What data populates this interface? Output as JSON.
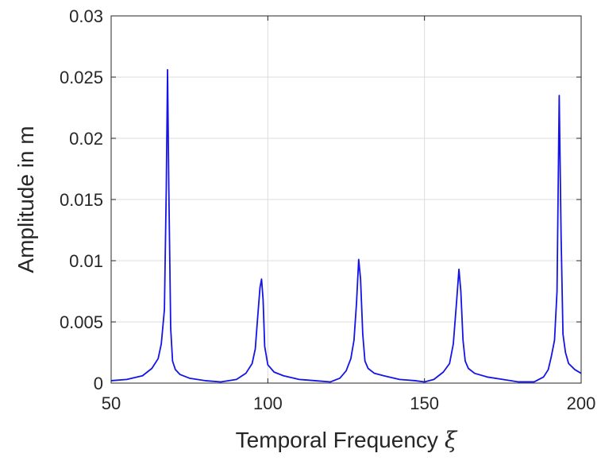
{
  "chart_data": {
    "type": "line",
    "title": "",
    "xlabel": "Temporal Frequency",
    "xlabel_symbol": "ξ",
    "ylabel": "Amplitude in m",
    "xlim": [
      50,
      200
    ],
    "ylim": [
      0,
      0.03
    ],
    "xticks": [
      50,
      100,
      150,
      200
    ],
    "xtick_labels": [
      "50",
      "100",
      "150",
      "200"
    ],
    "yticks": [
      0,
      0.005,
      0.01,
      0.015,
      0.02,
      0.025,
      0.03
    ],
    "ytick_labels": [
      "0",
      "0.005",
      "0.01",
      "0.015",
      "0.02",
      "0.025",
      "0.03"
    ],
    "grid": true,
    "line_color": "#1414e6",
    "series": [
      {
        "x": [
          50,
          55,
          60,
          63,
          65,
          66,
          67,
          67.6,
          68,
          68.4,
          69,
          69.6,
          70.5,
          72,
          75,
          80,
          85,
          90,
          93,
          95,
          96,
          96.8,
          97.5,
          98,
          98.5,
          99,
          100,
          102,
          105,
          110,
          115,
          120,
          123,
          125,
          126.5,
          127.5,
          128.3,
          129,
          129.6,
          130.3,
          131,
          132,
          134,
          137,
          142,
          147,
          150,
          153,
          156,
          158,
          159.2,
          160.2,
          161,
          161.6,
          162.3,
          163,
          164,
          166,
          170,
          175,
          180,
          185,
          188,
          189.5,
          190.5,
          191.5,
          192.3,
          193,
          193.6,
          194.2,
          195,
          196,
          198,
          200
        ],
        "y": [
          0.0002,
          0.0003,
          0.0006,
          0.0012,
          0.002,
          0.0032,
          0.006,
          0.016,
          0.0256,
          0.016,
          0.0045,
          0.0018,
          0.0011,
          0.0007,
          0.0004,
          0.0002,
          0.0001,
          0.0003,
          0.0008,
          0.0016,
          0.0028,
          0.0055,
          0.0078,
          0.0085,
          0.0068,
          0.003,
          0.0015,
          0.0009,
          0.0006,
          0.0003,
          0.0002,
          0.0001,
          0.0004,
          0.001,
          0.002,
          0.0035,
          0.0065,
          0.0101,
          0.0085,
          0.004,
          0.0018,
          0.0012,
          0.0008,
          0.0006,
          0.0003,
          0.0002,
          0.0001,
          0.0003,
          0.0009,
          0.0016,
          0.0032,
          0.0065,
          0.0093,
          0.0075,
          0.0035,
          0.0018,
          0.0012,
          0.0008,
          0.0005,
          0.0003,
          0.0001,
          0.0001,
          0.0005,
          0.0011,
          0.0022,
          0.0035,
          0.0075,
          0.0235,
          0.012,
          0.004,
          0.0025,
          0.0016,
          0.0011,
          0.0008
        ]
      }
    ]
  }
}
